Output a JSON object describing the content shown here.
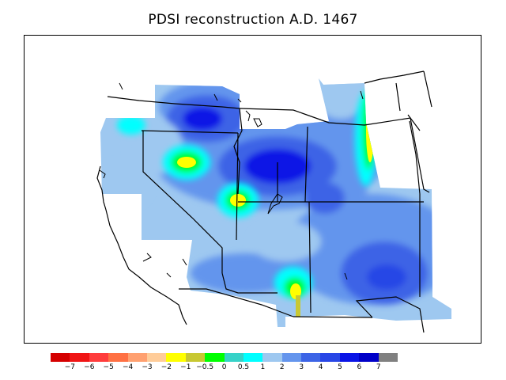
{
  "title": "PDSI reconstruction A.D. 1467",
  "legend": {
    "colors": [
      "#d50000",
      "#f01515",
      "#ff3c3c",
      "#ff7043",
      "#ffa070",
      "#ffcc99",
      "#ffff00",
      "#c8c832",
      "#00ff00",
      "#36d2c8",
      "#00ffff",
      "#9ec8f0",
      "#6495ed",
      "#3c64e6",
      "#2846e6",
      "#0a14e6",
      "#0000c8",
      "#808080"
    ],
    "tick_labels": [
      "−7",
      "−6",
      "−5",
      "−4",
      "−3",
      "−2",
      "−1",
      "−0.5",
      "0",
      "0.5",
      "1",
      "2",
      "3",
      "4",
      "5",
      "6",
      "7"
    ]
  },
  "map": {
    "region": "Western United States",
    "icons": [
      "state-boundary",
      "coastline",
      "lake"
    ]
  }
}
